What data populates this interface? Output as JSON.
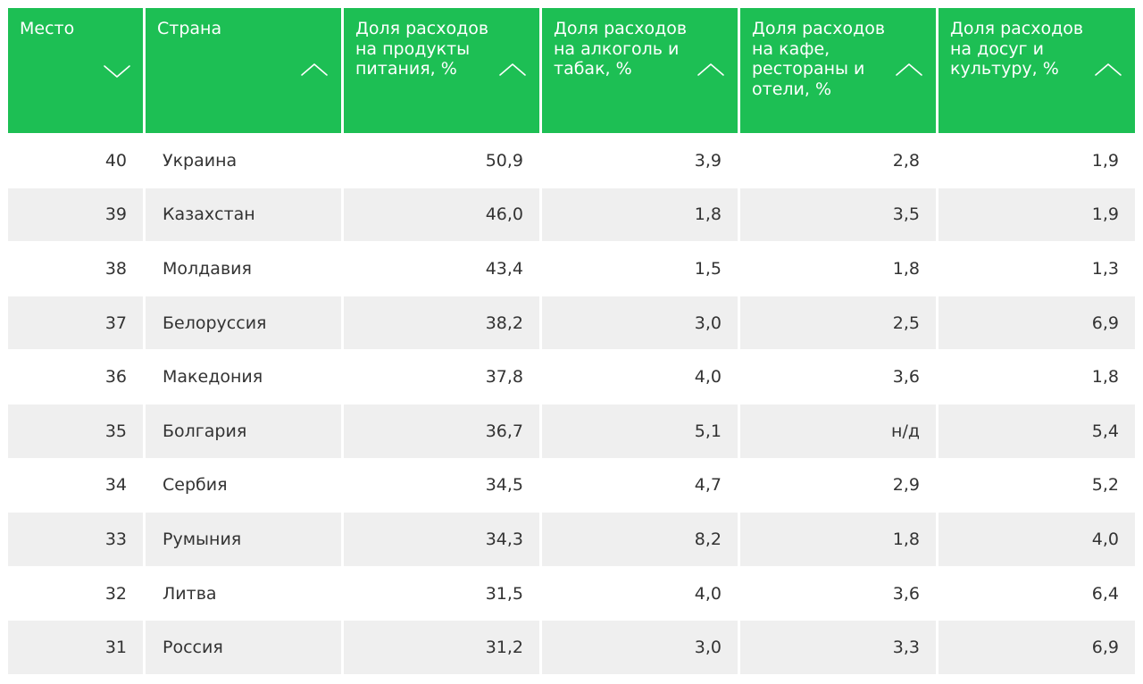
{
  "table": {
    "headers": [
      {
        "label": "Место",
        "sort": "down"
      },
      {
        "label": "Страна",
        "sort": "up"
      },
      {
        "label": "Доля расходов на продукты питания, %",
        "sort": "up"
      },
      {
        "label": "Доля расходов на алкоголь и табак, %",
        "sort": "up"
      },
      {
        "label": "Доля расходов на кафе, рестораны и отели, %",
        "sort": "up"
      },
      {
        "label": "Доля расходов на досуг и культуру, %",
        "sort": "up"
      }
    ],
    "rows": [
      {
        "rank": "40",
        "country": "Украина",
        "food": "50,9",
        "alcohol": "3,9",
        "cafe": "2,8",
        "leisure": "1,9"
      },
      {
        "rank": "39",
        "country": "Казахстан",
        "food": "46,0",
        "alcohol": "1,8",
        "cafe": "3,5",
        "leisure": "1,9"
      },
      {
        "rank": "38",
        "country": "Молдавия",
        "food": "43,4",
        "alcohol": "1,5",
        "cafe": "1,8",
        "leisure": "1,3"
      },
      {
        "rank": "37",
        "country": "Белоруссия",
        "food": "38,2",
        "alcohol": "3,0",
        "cafe": "2,5",
        "leisure": "6,9"
      },
      {
        "rank": "36",
        "country": "Македония",
        "food": "37,8",
        "alcohol": "4,0",
        "cafe": "3,6",
        "leisure": "1,8"
      },
      {
        "rank": "35",
        "country": "Болгария",
        "food": "36,7",
        "alcohol": "5,1",
        "cafe": "н/д",
        "leisure": "5,4"
      },
      {
        "rank": "34",
        "country": "Сербия",
        "food": "34,5",
        "alcohol": "4,7",
        "cafe": "2,9",
        "leisure": "5,2"
      },
      {
        "rank": "33",
        "country": "Румыния",
        "food": "34,3",
        "alcohol": "8,2",
        "cafe": "1,8",
        "leisure": "4,0"
      },
      {
        "rank": "32",
        "country": "Литва",
        "food": "31,5",
        "alcohol": "4,0",
        "cafe": "3,6",
        "leisure": "6,4"
      },
      {
        "rank": "31",
        "country": "Россия",
        "food": "31,2",
        "alcohol": "3,0",
        "cafe": "3,3",
        "leisure": "6,9"
      }
    ]
  },
  "colors": {
    "header_bg": "#1dbf54",
    "header_text": "#ffffff",
    "row_alt_bg": "#efefef",
    "cell_text": "#333333"
  },
  "icons": {
    "sort_down": "chevron-down-icon",
    "sort_up": "chevron-up-icon"
  }
}
